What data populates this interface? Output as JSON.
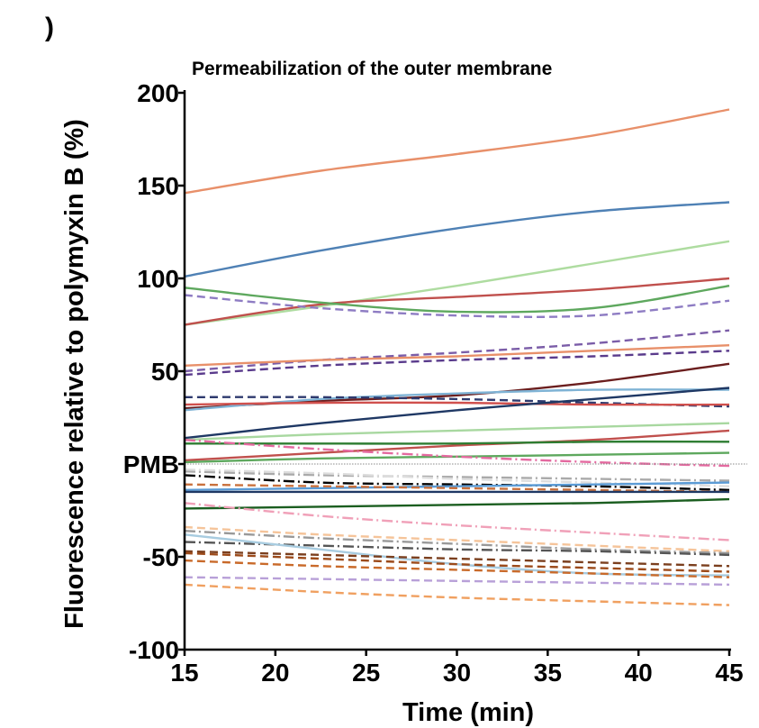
{
  "panel_label": ")",
  "chart_data": {
    "type": "line",
    "title": "Permeabilization of the outer membrane",
    "xlabel": "Time (min)",
    "ylabel": "Fluorescence relative to polymyxin B (%)",
    "xlim": [
      15,
      45
    ],
    "ylim": [
      -100,
      200
    ],
    "x_ticks": [
      "15",
      "20",
      "25",
      "30",
      "35",
      "40",
      "45"
    ],
    "y_ticks": [
      {
        "value": 200,
        "label": "200"
      },
      {
        "value": 150,
        "label": "150"
      },
      {
        "value": 100,
        "label": "100"
      },
      {
        "value": 50,
        "label": "50"
      },
      {
        "value": 0,
        "label": "PMB"
      },
      {
        "value": -50,
        "label": "-50"
      },
      {
        "value": -100,
        "label": "-100"
      }
    ],
    "reference_line": {
      "value": 0,
      "label": "PMB",
      "color": "#888888"
    },
    "x": [
      15,
      22.5,
      30,
      37.5,
      45
    ],
    "series": [
      {
        "name": "s01",
        "color": "#E8906A",
        "dash": "solid",
        "values": [
          146,
          158,
          167,
          177,
          191
        ]
      },
      {
        "name": "s02",
        "color": "#4F81B5",
        "dash": "solid",
        "values": [
          101,
          115,
          127,
          136,
          141
        ]
      },
      {
        "name": "s03",
        "color": "#AEDCA0",
        "dash": "solid",
        "values": [
          75,
          85,
          96,
          108,
          120
        ]
      },
      {
        "name": "s04",
        "color": "#C0504D",
        "dash": "solid",
        "values": [
          75,
          86,
          90,
          94,
          100
        ]
      },
      {
        "name": "s05",
        "color": "#5EA85E",
        "dash": "solid",
        "values": [
          95,
          87,
          82,
          84,
          96
        ]
      },
      {
        "name": "s06",
        "color": "#8E7CC3",
        "dash": "dash",
        "values": [
          91,
          84,
          80,
          80,
          88
        ]
      },
      {
        "name": "s07",
        "color": "#7B5DA8",
        "dash": "dash",
        "values": [
          50,
          56,
          60,
          65,
          72
        ]
      },
      {
        "name": "s08",
        "color": "#E8906A",
        "dash": "solid",
        "values": [
          53,
          56,
          58,
          61,
          64
        ]
      },
      {
        "name": "s09",
        "color": "#5A3B8C",
        "dash": "dash",
        "values": [
          48,
          53,
          56,
          58,
          61
        ]
      },
      {
        "name": "s10",
        "color": "#6B1E1E",
        "dash": "solid",
        "values": [
          30,
          34,
          37,
          44,
          54
        ]
      },
      {
        "name": "s11",
        "color": "#7FB3D5",
        "dash": "solid",
        "values": [
          29,
          35,
          38,
          40,
          40
        ]
      },
      {
        "name": "s12",
        "color": "#2E3A6E",
        "dash": "dash",
        "values": [
          36,
          36,
          35,
          33,
          31
        ]
      },
      {
        "name": "s13",
        "color": "#D0504D",
        "dash": "solid",
        "values": [
          32,
          33,
          33,
          32,
          32
        ]
      },
      {
        "name": "s14",
        "color": "#1F3864",
        "dash": "solid",
        "values": [
          14,
          22,
          29,
          35,
          41
        ]
      },
      {
        "name": "s15",
        "color": "#A8D8A0",
        "dash": "solid",
        "values": [
          13,
          16,
          18,
          20,
          22
        ]
      },
      {
        "name": "s16",
        "color": "#C0504D",
        "dash": "solid",
        "values": [
          2,
          6,
          10,
          13,
          18
        ]
      },
      {
        "name": "s17",
        "color": "#2E7D32",
        "dash": "solid",
        "values": [
          11,
          11,
          11,
          12,
          12
        ]
      },
      {
        "name": "s18",
        "color": "#5EA85E",
        "dash": "solid",
        "values": [
          1,
          3,
          4,
          5,
          6
        ]
      },
      {
        "name": "s19",
        "color": "#E46AA0",
        "dash": "dashdot",
        "values": [
          13,
          8,
          4,
          1,
          -1
        ]
      },
      {
        "name": "s20",
        "color": "#AAAAAA",
        "dash": "dashdot",
        "values": [
          -4,
          -6,
          -7,
          -8,
          -9
        ]
      },
      {
        "name": "s21",
        "color": "#DDDDDD",
        "dash": "dashdot",
        "values": [
          -3,
          -5,
          -8,
          -10,
          -12
        ]
      },
      {
        "name": "s22",
        "color": "#000000",
        "dash": "dashdot",
        "values": [
          -6,
          -10,
          -11,
          -12,
          -14
        ]
      },
      {
        "name": "s23",
        "color": "#5B9BD5",
        "dash": "solid",
        "values": [
          -14,
          -13,
          -12,
          -11,
          -10
        ]
      },
      {
        "name": "s24",
        "color": "#C9713D",
        "dash": "dash",
        "values": [
          -11,
          -12,
          -13,
          -14,
          -15
        ]
      },
      {
        "name": "s25",
        "color": "#1F3864",
        "dash": "solid",
        "values": [
          -15,
          -15,
          -15,
          -15,
          -15
        ]
      },
      {
        "name": "s26",
        "color": "#1B5E20",
        "dash": "solid",
        "values": [
          -24,
          -23,
          -22,
          -21,
          -19
        ]
      },
      {
        "name": "s27",
        "color": "#F0A0B8",
        "dash": "dashdot",
        "values": [
          -21,
          -28,
          -33,
          -37,
          -41
        ]
      },
      {
        "name": "s28",
        "color": "#F5C49A",
        "dash": "dash",
        "values": [
          -34,
          -38,
          -41,
          -44,
          -47
        ]
      },
      {
        "name": "s29",
        "color": "#999999",
        "dash": "dashdot",
        "values": [
          -36,
          -40,
          -43,
          -46,
          -48
        ]
      },
      {
        "name": "s30",
        "color": "#555555",
        "dash": "dashdot",
        "values": [
          -42,
          -44,
          -46,
          -47,
          -49
        ]
      },
      {
        "name": "s31",
        "color": "#A8CCE0",
        "dash": "solid",
        "values": [
          -38,
          -46,
          -54,
          -59,
          -60
        ]
      },
      {
        "name": "s32",
        "color": "#7B3F1E",
        "dash": "dash",
        "values": [
          -47,
          -49,
          -51,
          -53,
          -55
        ]
      },
      {
        "name": "s33",
        "color": "#9C4A1A",
        "dash": "dash",
        "values": [
          -48,
          -51,
          -54,
          -56,
          -58
        ]
      },
      {
        "name": "s34",
        "color": "#C96A2A",
        "dash": "dash",
        "values": [
          -52,
          -55,
          -57,
          -59,
          -61
        ]
      },
      {
        "name": "s35",
        "color": "#B8A0D8",
        "dash": "dash",
        "values": [
          -61,
          -62,
          -63,
          -64,
          -65
        ]
      },
      {
        "name": "s36",
        "color": "#F0A060",
        "dash": "dash",
        "values": [
          -65,
          -69,
          -72,
          -74,
          -76
        ]
      }
    ]
  }
}
